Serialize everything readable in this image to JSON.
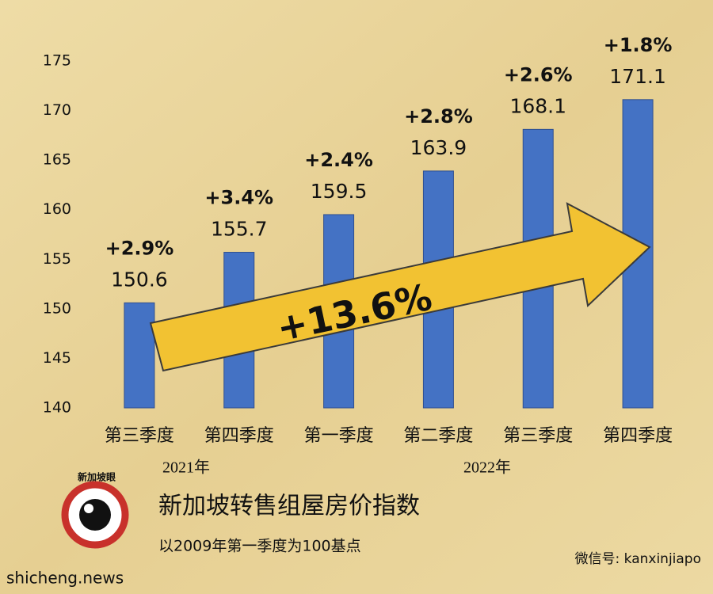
{
  "chart_data": {
    "type": "bar",
    "title": "新加坡转售组屋房价指数",
    "subtitle": "以2009年第一季度为100基点",
    "categories": [
      "第三季度",
      "第四季度",
      "第一季度",
      "第二季度",
      "第三季度",
      "第四季度"
    ],
    "values": [
      150.6,
      155.7,
      159.5,
      163.9,
      168.1,
      171.1
    ],
    "change_labels": [
      "+2.9%",
      "+3.4%",
      "+2.4%",
      "+2.8%",
      "+2.6%",
      "+1.8%"
    ],
    "group_labels": [
      "2021年",
      "2022年"
    ],
    "arrow_label": "+13.6%",
    "color": "#4472c4",
    "ylim": [
      140,
      175
    ],
    "yticks": [
      140,
      145,
      150,
      155,
      160,
      165,
      170,
      175
    ],
    "grid": false
  },
  "logo_text": "新加坡眼",
  "wechat": "微信号: kanxinjiapo",
  "source": "shicheng.news"
}
